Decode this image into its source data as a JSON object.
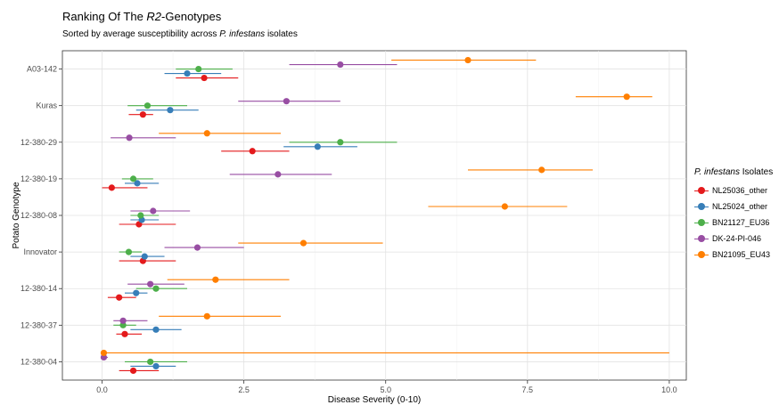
{
  "title_prefix": "Ranking Of The ",
  "title_italic": "R2",
  "title_suffix": "-Genotypes",
  "subtitle_prefix": "Sorted by average susceptibility across ",
  "subtitle_italic": "P. infestans",
  "subtitle_suffix": " isolates",
  "legend_title_italic": "P. infestans",
  "legend_title_suffix": " Isolates",
  "chart_data": {
    "type": "scatter",
    "xlabel": "Disease Severity (0-10)",
    "ylabel": "Potato Genotype",
    "xlim": [
      -0.7,
      10.3
    ],
    "xticks": [
      0.0,
      2.5,
      5.0,
      7.5,
      10.0
    ],
    "xtick_labels": [
      "0.0",
      "2.5",
      "5.0",
      "7.5",
      "10.0"
    ],
    "grid": true,
    "legend_position": "right",
    "categories": [
      "A03-142",
      "Kuras",
      "12-380-29",
      "12-380-19",
      "12-380-08",
      "Innovator",
      "12-380-14",
      "12-380-37",
      "12-380-04"
    ],
    "series": [
      {
        "name": "NL25036_other",
        "color": "#e41a1c",
        "values": [
          1.8,
          0.72,
          2.65,
          0.17,
          0.65,
          0.72,
          0.3,
          0.4,
          0.55
        ],
        "lower": [
          1.3,
          0.47,
          2.1,
          0.0,
          0.3,
          0.3,
          0.1,
          0.25,
          0.3
        ],
        "upper": [
          2.4,
          0.9,
          3.3,
          0.8,
          1.3,
          1.3,
          0.6,
          0.7,
          1.0
        ]
      },
      {
        "name": "NL25024_other",
        "color": "#377eb8",
        "values": [
          1.5,
          1.2,
          3.8,
          0.62,
          0.7,
          0.75,
          0.6,
          0.95,
          0.95
        ],
        "lower": [
          1.1,
          0.6,
          3.2,
          0.4,
          0.5,
          0.5,
          0.4,
          0.5,
          0.5
        ],
        "upper": [
          2.1,
          1.7,
          4.5,
          1.0,
          1.0,
          1.1,
          0.8,
          1.4,
          1.3
        ]
      },
      {
        "name": "BN21127_EU36",
        "color": "#4daf4a",
        "values": [
          1.7,
          0.8,
          4.2,
          0.55,
          0.68,
          0.47,
          0.95,
          0.37,
          0.85
        ],
        "lower": [
          1.3,
          0.45,
          3.3,
          0.35,
          0.5,
          0.3,
          0.6,
          0.2,
          0.4
        ],
        "upper": [
          2.3,
          1.5,
          5.2,
          0.9,
          1.0,
          0.7,
          1.5,
          0.6,
          1.5
        ]
      },
      {
        "name": "DK-24-PI-046",
        "color": "#984ea3",
        "values": [
          4.2,
          3.25,
          0.48,
          3.1,
          0.9,
          1.68,
          0.85,
          0.37,
          0.03
        ],
        "lower": [
          3.3,
          2.4,
          0.15,
          2.25,
          0.5,
          1.1,
          0.45,
          0.2,
          0.0
        ],
        "upper": [
          5.2,
          4.2,
          1.3,
          4.05,
          1.55,
          2.5,
          1.45,
          0.8,
          0.1
        ]
      },
      {
        "name": "BN21095_EU43",
        "color": "#ff7f00",
        "values": [
          6.45,
          9.25,
          1.85,
          7.75,
          7.1,
          3.55,
          2.0,
          1.85,
          0.03
        ],
        "lower": [
          5.1,
          8.35,
          1.0,
          6.45,
          5.75,
          2.4,
          1.15,
          1.0,
          0.0
        ],
        "upper": [
          7.65,
          9.7,
          3.15,
          8.65,
          8.2,
          4.95,
          3.3,
          3.15,
          10.0
        ]
      }
    ]
  }
}
